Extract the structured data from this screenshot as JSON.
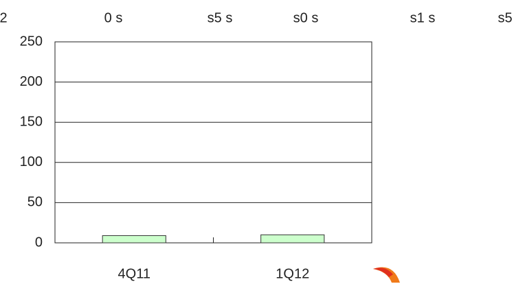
{
  "chart_data": {
    "type": "bar",
    "annotations": [
      "2",
      "0  s",
      "s5  s",
      "s0  s",
      "s1  s",
      "s5"
    ],
    "categories": [
      "4Q11",
      "1Q12"
    ],
    "values": [
      9,
      10
    ],
    "color": "#ccffcc",
    "ylim": [
      0,
      250
    ],
    "yticks": [
      0,
      50,
      100,
      150,
      200,
      250
    ],
    "grid": true
  }
}
